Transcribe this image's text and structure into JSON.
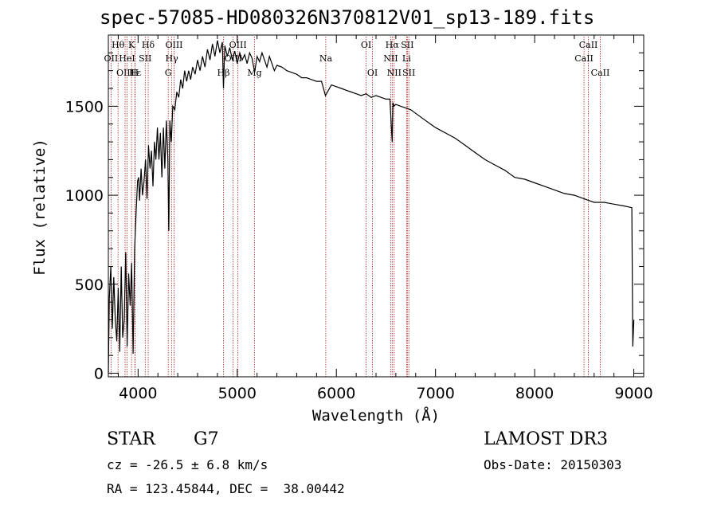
{
  "chart_data": {
    "type": "line",
    "title": "spec-57085-HD080326N370812V01_sp13-189.fits",
    "xlabel": "Wavelength (Å)",
    "ylabel": "Flux (relative)",
    "xlim": [
      3700,
      9100
    ],
    "ylim": [
      -20,
      1900
    ],
    "xticks": [
      4000,
      5000,
      6000,
      7000,
      8000,
      9000
    ],
    "yticks": [
      0,
      500,
      1000,
      1500
    ],
    "series": [
      {
        "name": "flux",
        "x": [
          3700,
          3710,
          3725,
          3740,
          3755,
          3770,
          3785,
          3800,
          3815,
          3830,
          3845,
          3860,
          3875,
          3890,
          3905,
          3920,
          3935,
          3950,
          3965,
          3980,
          3995,
          4005,
          4015,
          4030,
          4045,
          4060,
          4075,
          4090,
          4105,
          4120,
          4135,
          4150,
          4165,
          4180,
          4195,
          4210,
          4225,
          4240,
          4255,
          4270,
          4285,
          4300,
          4310,
          4320,
          4335,
          4350,
          4370,
          4390,
          4410,
          4430,
          4450,
          4470,
          4490,
          4510,
          4530,
          4550,
          4575,
          4600,
          4625,
          4650,
          4675,
          4700,
          4725,
          4750,
          4775,
          4800,
          4825,
          4850,
          4861,
          4875,
          4900,
          4925,
          4950,
          4975,
          5000,
          5025,
          5050,
          5075,
          5100,
          5125,
          5150,
          5175,
          5200,
          5225,
          5250,
          5275,
          5300,
          5325,
          5350,
          5375,
          5400,
          5450,
          5500,
          5550,
          5600,
          5650,
          5700,
          5750,
          5800,
          5850,
          5890,
          5950,
          6000,
          6050,
          6100,
          6150,
          6200,
          6250,
          6300,
          6350,
          6400,
          6450,
          6500,
          6540,
          6563,
          6570,
          6580,
          6600,
          6650,
          6700,
          6750,
          6800,
          6850,
          6900,
          6950,
          7000,
          7100,
          7200,
          7300,
          7400,
          7500,
          7600,
          7700,
          7800,
          7900,
          8000,
          8100,
          8200,
          8300,
          8400,
          8500,
          8550,
          8600,
          8650,
          8700,
          8800,
          8900,
          8980,
          8990,
          9000
        ],
        "values": [
          0,
          420,
          600,
          250,
          540,
          300,
          180,
          480,
          120,
          600,
          200,
          300,
          680,
          150,
          560,
          380,
          620,
          110,
          700,
          900,
          1080,
          1100,
          970,
          1150,
          1000,
          1080,
          1200,
          980,
          1280,
          1150,
          1250,
          1050,
          1300,
          1200,
          1380,
          1200,
          1350,
          1100,
          1380,
          1150,
          1420,
          1200,
          800,
          1420,
          1300,
          1500,
          1480,
          1580,
          1550,
          1650,
          1600,
          1700,
          1640,
          1700,
          1650,
          1720,
          1680,
          1760,
          1700,
          1780,
          1720,
          1820,
          1760,
          1850,
          1780,
          1870,
          1800,
          1860,
          1600,
          1840,
          1780,
          1830,
          1760,
          1810,
          1740,
          1800,
          1760,
          1790,
          1740,
          1800,
          1770,
          1690,
          1780,
          1750,
          1800,
          1760,
          1720,
          1780,
          1740,
          1700,
          1730,
          1720,
          1700,
          1690,
          1680,
          1660,
          1660,
          1650,
          1640,
          1640,
          1560,
          1620,
          1610,
          1600,
          1590,
          1580,
          1570,
          1560,
          1570,
          1550,
          1560,
          1550,
          1540,
          1540,
          1300,
          1520,
          1500,
          1510,
          1500,
          1490,
          1480,
          1460,
          1440,
          1420,
          1400,
          1380,
          1350,
          1320,
          1280,
          1240,
          1200,
          1170,
          1140,
          1100,
          1090,
          1070,
          1050,
          1030,
          1010,
          1000,
          980,
          970,
          960,
          960,
          960,
          950,
          940,
          930,
          150,
          300
        ]
      }
    ],
    "lines": [
      {
        "label": "Hθ",
        "wavelength": 3798,
        "row": 1
      },
      {
        "label": "OII",
        "wavelength": 3727,
        "row": 2
      },
      {
        "label": "OIII",
        "wavelength": 3869,
        "row": 3
      },
      {
        "label": "K",
        "wavelength": 3934,
        "row": 1
      },
      {
        "label": "HeI",
        "wavelength": 3889,
        "row": 2
      },
      {
        "label": "Hε",
        "wavelength": 3970,
        "row": 3
      },
      {
        "label": "Hδ",
        "wavelength": 4102,
        "row": 1
      },
      {
        "label": "SII",
        "wavelength": 4072,
        "row": 2
      },
      {
        "label": "H",
        "wavelength": 3968,
        "row": 3
      },
      {
        "label": "OIII",
        "wavelength": 4363,
        "row": 1
      },
      {
        "label": "Hγ",
        "wavelength": 4340,
        "row": 2
      },
      {
        "label": "G",
        "wavelength": 4304,
        "row": 3
      },
      {
        "label": "OIII",
        "wavelength": 5007,
        "row": 1
      },
      {
        "label": "OIII",
        "wavelength": 4959,
        "row": 2
      },
      {
        "label": "Hβ",
        "wavelength": 4861,
        "row": 3
      },
      {
        "label": "Mg",
        "wavelength": 5175,
        "row": 3
      },
      {
        "label": "Na",
        "wavelength": 5893,
        "row": 2
      },
      {
        "label": "OI",
        "wavelength": 6300,
        "row": 1
      },
      {
        "label": "OI",
        "wavelength": 6364,
        "row": 3
      },
      {
        "label": "Hα",
        "wavelength": 6563,
        "row": 1
      },
      {
        "label": "SII",
        "wavelength": 6716,
        "row": 1
      },
      {
        "label": "NII",
        "wavelength": 6548,
        "row": 2
      },
      {
        "label": "Li",
        "wavelength": 6708,
        "row": 2
      },
      {
        "label": "NII",
        "wavelength": 6583,
        "row": 3
      },
      {
        "label": "SII",
        "wavelength": 6731,
        "row": 3
      },
      {
        "label": "CaII",
        "wavelength": 8542,
        "row": 1
      },
      {
        "label": "CaII",
        "wavelength": 8498,
        "row": 2
      },
      {
        "label": "CaII",
        "wavelength": 8662,
        "row": 3
      }
    ],
    "grid": false,
    "line_color": "#000000",
    "marker_color": "#b22222"
  },
  "info": {
    "object_type": "STAR",
    "subclass": "G7",
    "survey": "LAMOST DR3",
    "redshift": "cz = -26.5 ± 6.8 km/s",
    "obs_date": "Obs-Date: 20150303",
    "coords": "RA = 123.45844, DEC =  38.00442"
  }
}
